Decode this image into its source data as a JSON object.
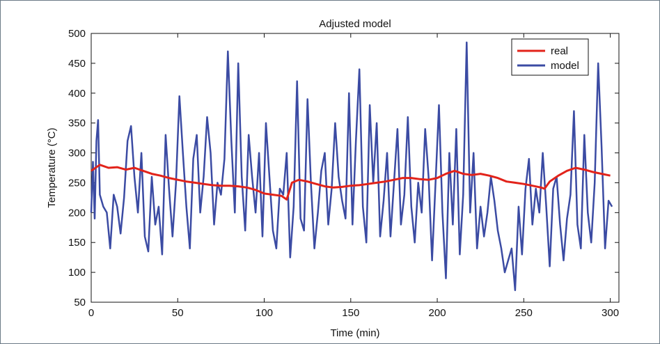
{
  "chart_data": {
    "type": "line",
    "title": "Adjusted model",
    "xlabel": "Time (min)",
    "ylabel": "Temperature (°C)",
    "xlim": [
      0,
      305
    ],
    "ylim": [
      50,
      500
    ],
    "xticks": [
      0,
      50,
      100,
      150,
      200,
      250,
      300
    ],
    "yticks": [
      50,
      100,
      150,
      200,
      250,
      300,
      350,
      400,
      450,
      500
    ],
    "grid": false,
    "legend_position": "top-right",
    "series": [
      {
        "name": "real",
        "color": "#e2231a",
        "x": [
          0,
          5,
          10,
          15,
          20,
          25,
          30,
          35,
          40,
          45,
          50,
          55,
          60,
          65,
          70,
          75,
          80,
          85,
          90,
          95,
          100,
          105,
          110,
          113,
          116,
          120,
          125,
          130,
          135,
          140,
          145,
          150,
          155,
          160,
          165,
          170,
          175,
          180,
          185,
          190,
          195,
          200,
          205,
          210,
          215,
          220,
          225,
          230,
          235,
          240,
          245,
          250,
          255,
          260,
          262,
          265,
          270,
          275,
          280,
          285,
          290,
          295,
          300
        ],
        "y": [
          270,
          280,
          275,
          276,
          272,
          275,
          270,
          265,
          262,
          258,
          255,
          252,
          250,
          248,
          246,
          245,
          245,
          244,
          242,
          238,
          232,
          230,
          228,
          222,
          250,
          255,
          252,
          248,
          244,
          242,
          243,
          245,
          246,
          248,
          250,
          252,
          255,
          258,
          258,
          256,
          255,
          258,
          265,
          270,
          265,
          263,
          265,
          262,
          258,
          252,
          250,
          248,
          245,
          242,
          240,
          252,
          262,
          270,
          275,
          272,
          268,
          265,
          262
        ]
      },
      {
        "name": "model",
        "color": "#3b4ba3",
        "x": [
          0,
          1,
          2,
          3,
          4,
          5,
          7,
          9,
          11,
          13,
          15,
          17,
          19,
          21,
          23,
          25,
          27,
          29,
          31,
          33,
          35,
          37,
          39,
          41,
          43,
          45,
          47,
          49,
          51,
          53,
          55,
          57,
          59,
          61,
          63,
          65,
          67,
          69,
          71,
          73,
          75,
          77,
          79,
          81,
          83,
          85,
          87,
          89,
          91,
          93,
          95,
          97,
          99,
          101,
          103,
          105,
          107,
          109,
          111,
          113,
          115,
          117,
          119,
          121,
          123,
          125,
          127,
          129,
          131,
          133,
          135,
          137,
          139,
          141,
          143,
          145,
          147,
          149,
          151,
          153,
          155,
          157,
          159,
          161,
          163,
          165,
          167,
          169,
          171,
          173,
          175,
          177,
          179,
          181,
          183,
          185,
          187,
          189,
          191,
          193,
          195,
          197,
          199,
          201,
          203,
          205,
          207,
          209,
          211,
          213,
          215,
          217,
          219,
          221,
          223,
          225,
          227,
          229,
          231,
          233,
          235,
          237,
          239,
          241,
          243,
          245,
          247,
          249,
          251,
          253,
          255,
          257,
          259,
          261,
          263,
          265,
          267,
          269,
          271,
          273,
          275,
          277,
          279,
          281,
          283,
          285,
          287,
          289,
          291,
          293,
          295,
          297,
          299,
          301
        ],
        "y": [
          200,
          285,
          190,
          320,
          355,
          230,
          210,
          200,
          140,
          230,
          210,
          165,
          225,
          320,
          345,
          260,
          200,
          300,
          160,
          135,
          260,
          180,
          210,
          130,
          330,
          240,
          160,
          250,
          395,
          300,
          210,
          140,
          290,
          330,
          200,
          260,
          360,
          300,
          180,
          250,
          230,
          290,
          470,
          320,
          200,
          450,
          260,
          170,
          330,
          260,
          200,
          300,
          160,
          350,
          260,
          170,
          140,
          240,
          230,
          300,
          125,
          210,
          420,
          190,
          170,
          390,
          250,
          140,
          200,
          270,
          300,
          180,
          240,
          350,
          260,
          220,
          190,
          400,
          180,
          320,
          440,
          210,
          150,
          380,
          250,
          350,
          160,
          220,
          300,
          160,
          250,
          340,
          180,
          230,
          360,
          210,
          150,
          250,
          200,
          340,
          260,
          120,
          250,
          380,
          200,
          90,
          300,
          180,
          340,
          130,
          230,
          485,
          200,
          300,
          140,
          210,
          160,
          200,
          260,
          220,
          170,
          140,
          100,
          120,
          140,
          70,
          210,
          130,
          240,
          290,
          180,
          240,
          200,
          300,
          210,
          110,
          240,
          260,
          180,
          120,
          190,
          230,
          370,
          180,
          140,
          330,
          200,
          150,
          250,
          450,
          310,
          140,
          220,
          210
        ]
      }
    ]
  }
}
